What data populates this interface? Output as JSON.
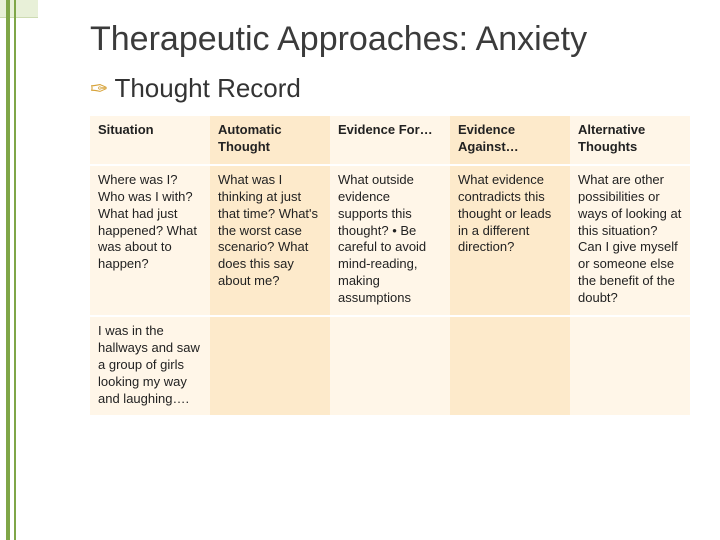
{
  "title": "Therapeutic Approaches: Anxiety",
  "subtitle": "Thought Record",
  "accent_color": "#d7a33a",
  "sidebar_color": "#7fa648",
  "stripe_colors": {
    "odd": "#fff6e8",
    "even": "#fdeacb"
  },
  "table": {
    "columns": [
      {
        "label": "Situation"
      },
      {
        "label": "Automatic Thought"
      },
      {
        "label": "Evidence For…"
      },
      {
        "label": "Evidence Against…"
      },
      {
        "label": "Alternative Thoughts"
      }
    ],
    "rows": [
      [
        "Where was I? Who was I with? What had just happened? What was about to happen?",
        "What was I thinking at just that time? What's the worst case scenario? What does this say about me?",
        "What outside evidence supports this thought?\n• Be careful to avoid mind-reading, making assumptions",
        "What evidence contradicts this thought or leads in a different direction?",
        "What are other possibilities or ways of looking at this situation? Can I give myself or someone else the benefit of the doubt?"
      ],
      [
        "I was in the hallways and saw a group of girls looking my way and laughing….",
        "",
        "",
        "",
        ""
      ]
    ]
  }
}
